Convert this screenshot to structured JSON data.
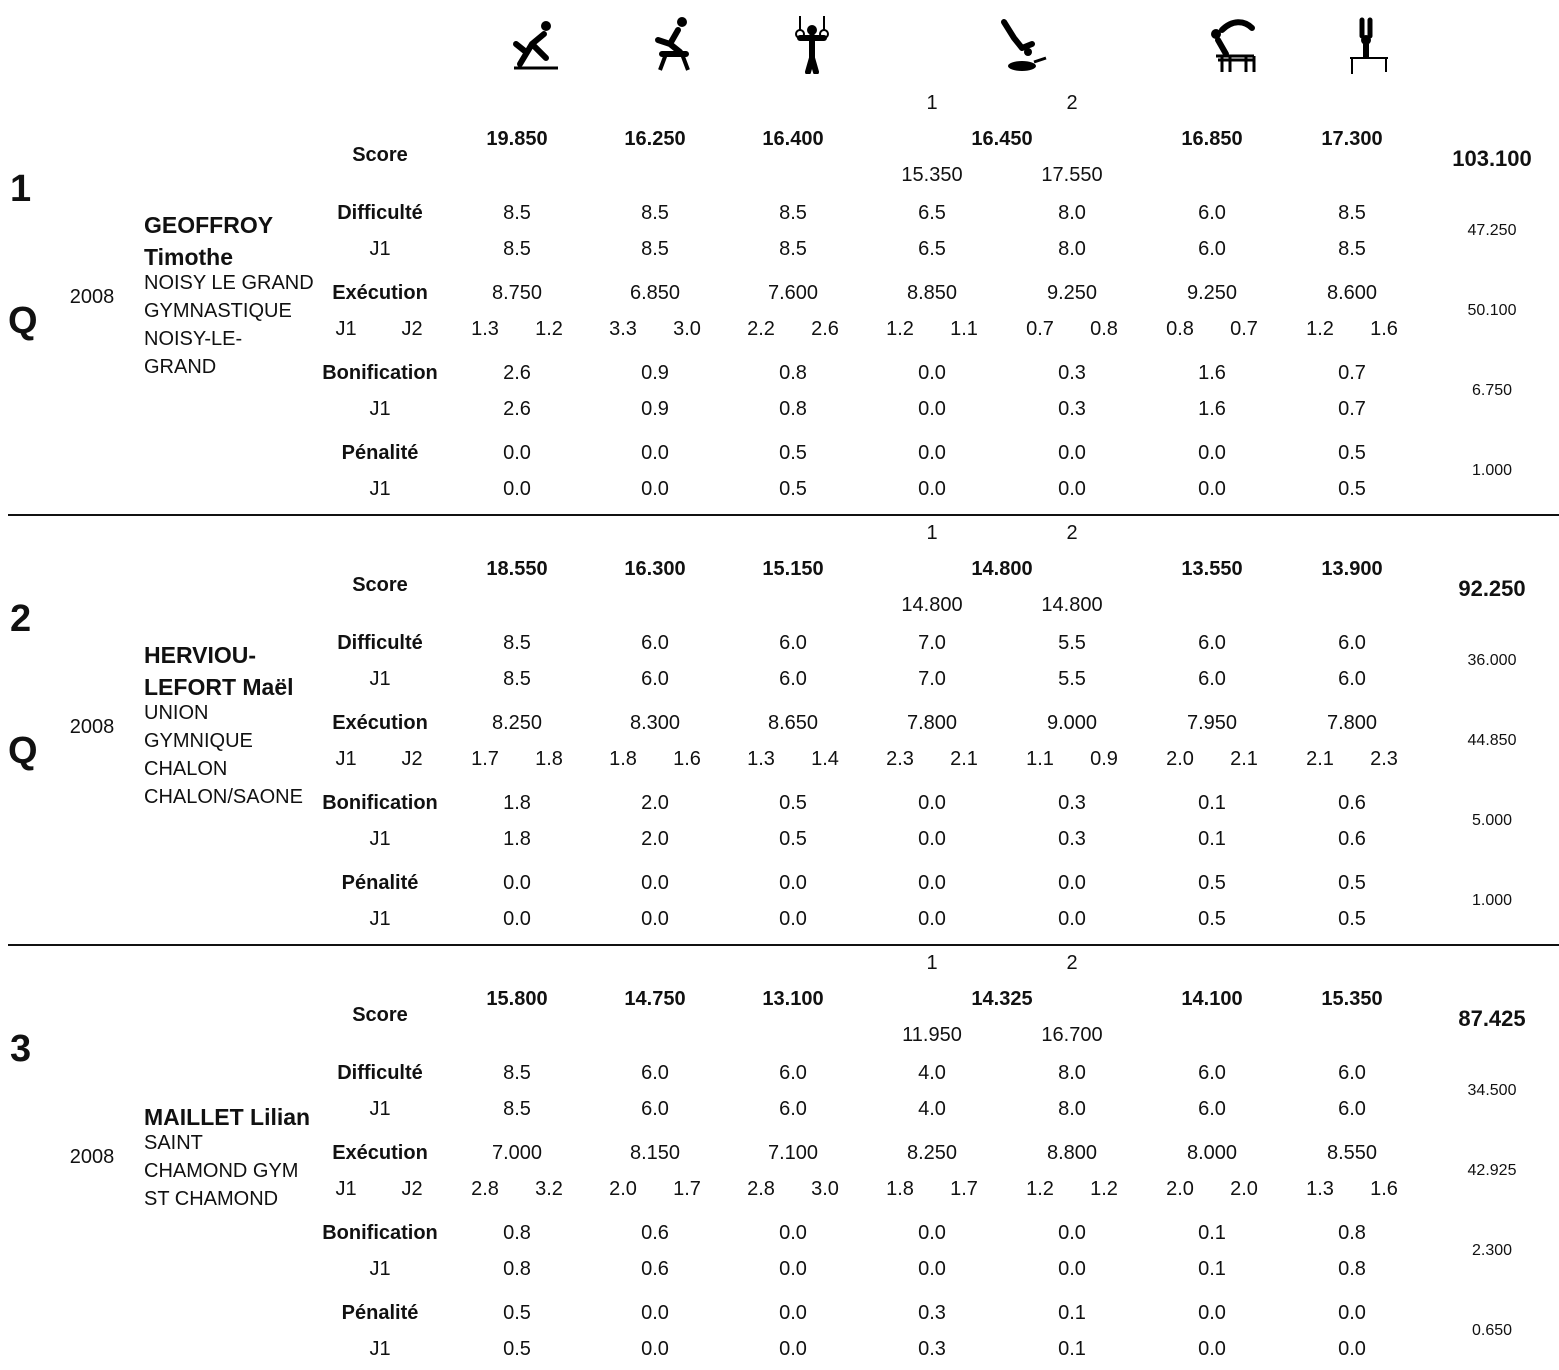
{
  "apparatus_icons": [
    "floor-icon",
    "pommel-horse-icon",
    "rings-icon",
    "vault-icon",
    "parallel-bars-icon",
    "high-bar-icon"
  ],
  "labels": {
    "score": "Score",
    "difficulty": "Difficulté",
    "execution": "Exécution",
    "bonus": "Bonification",
    "penalty": "Pénalité",
    "j1": "J1",
    "j2": "J2",
    "vault1": "1",
    "vault2": "2"
  },
  "athletes": [
    {
      "rank": "1",
      "q": "Q",
      "year": "2008",
      "name": [
        "GEOFFROY",
        "Timothe"
      ],
      "club": [
        "NOISY LE GRAND",
        "GYMNASTIQUE",
        "NOISY-LE-",
        "GRAND"
      ],
      "total": "103.100",
      "totals": {
        "difficulty": "47.250",
        "execution": "50.100",
        "bonus": "6.750",
        "penalty": "1.000"
      },
      "scores": [
        "19.850",
        "16.250",
        "16.400",
        "16.450",
        "16.850",
        "17.300"
      ],
      "vault_scores": [
        "15.350",
        "17.550"
      ],
      "difficulty": [
        "8.5",
        "8.5",
        "8.5",
        "6.5",
        "8.0",
        "6.0",
        "8.5"
      ],
      "difficulty_j1": [
        "8.5",
        "8.5",
        "8.5",
        "6.5",
        "8.0",
        "6.0",
        "8.5"
      ],
      "execution": [
        "8.750",
        "6.850",
        "7.600",
        "8.850",
        "9.250",
        "9.250",
        "8.600"
      ],
      "exec_j": [
        [
          "1.3",
          "1.2"
        ],
        [
          "3.3",
          "3.0"
        ],
        [
          "2.2",
          "2.6"
        ],
        [
          "1.2",
          "1.1"
        ],
        [
          "0.7",
          "0.8"
        ],
        [
          "0.8",
          "0.7"
        ],
        [
          "1.2",
          "1.6"
        ]
      ],
      "bonus": [
        "2.6",
        "0.9",
        "0.8",
        "0.0",
        "0.3",
        "1.6",
        "0.7"
      ],
      "bonus_j1": [
        "2.6",
        "0.9",
        "0.8",
        "0.0",
        "0.3",
        "1.6",
        "0.7"
      ],
      "penalty": [
        "0.0",
        "0.0",
        "0.5",
        "0.0",
        "0.0",
        "0.0",
        "0.5"
      ],
      "penalty_j1": [
        "0.0",
        "0.0",
        "0.5",
        "0.0",
        "0.0",
        "0.0",
        "0.5"
      ]
    },
    {
      "rank": "2",
      "q": "Q",
      "year": "2008",
      "name": [
        "HERVIOU-",
        "LEFORT Maël"
      ],
      "club": [
        "UNION",
        "GYMNIQUE",
        "CHALON",
        "CHALON/SAONE"
      ],
      "total": "92.250",
      "totals": {
        "difficulty": "36.000",
        "execution": "44.850",
        "bonus": "5.000",
        "penalty": "1.000"
      },
      "scores": [
        "18.550",
        "16.300",
        "15.150",
        "14.800",
        "13.550",
        "13.900"
      ],
      "vault_scores": [
        "14.800",
        "14.800"
      ],
      "difficulty": [
        "8.5",
        "6.0",
        "6.0",
        "7.0",
        "5.5",
        "6.0",
        "6.0"
      ],
      "difficulty_j1": [
        "8.5",
        "6.0",
        "6.0",
        "7.0",
        "5.5",
        "6.0",
        "6.0"
      ],
      "execution": [
        "8.250",
        "8.300",
        "8.650",
        "7.800",
        "9.000",
        "7.950",
        "7.800"
      ],
      "exec_j": [
        [
          "1.7",
          "1.8"
        ],
        [
          "1.8",
          "1.6"
        ],
        [
          "1.3",
          "1.4"
        ],
        [
          "2.3",
          "2.1"
        ],
        [
          "1.1",
          "0.9"
        ],
        [
          "2.0",
          "2.1"
        ],
        [
          "2.1",
          "2.3"
        ]
      ],
      "bonus": [
        "1.8",
        "2.0",
        "0.5",
        "0.0",
        "0.3",
        "0.1",
        "0.6"
      ],
      "bonus_j1": [
        "1.8",
        "2.0",
        "0.5",
        "0.0",
        "0.3",
        "0.1",
        "0.6"
      ],
      "penalty": [
        "0.0",
        "0.0",
        "0.0",
        "0.0",
        "0.0",
        "0.5",
        "0.5"
      ],
      "penalty_j1": [
        "0.0",
        "0.0",
        "0.0",
        "0.0",
        "0.0",
        "0.5",
        "0.5"
      ]
    },
    {
      "rank": "3",
      "q": "",
      "year": "2008",
      "name": [
        "MAILLET Lilian"
      ],
      "club": [
        "SAINT",
        "CHAMOND GYM",
        "ST CHAMOND"
      ],
      "total": "87.425",
      "totals": {
        "difficulty": "34.500",
        "execution": "42.925",
        "bonus": "2.300",
        "penalty": "0.650"
      },
      "scores": [
        "15.800",
        "14.750",
        "13.100",
        "14.325",
        "14.100",
        "15.350"
      ],
      "vault_scores": [
        "11.950",
        "16.700"
      ],
      "difficulty": [
        "8.5",
        "6.0",
        "6.0",
        "4.0",
        "8.0",
        "6.0",
        "6.0"
      ],
      "difficulty_j1": [
        "8.5",
        "6.0",
        "6.0",
        "4.0",
        "8.0",
        "6.0",
        "6.0"
      ],
      "execution": [
        "7.000",
        "8.150",
        "7.100",
        "8.250",
        "8.800",
        "8.000",
        "8.550"
      ],
      "exec_j": [
        [
          "2.8",
          "3.2"
        ],
        [
          "2.0",
          "1.7"
        ],
        [
          "2.8",
          "3.0"
        ],
        [
          "1.8",
          "1.7"
        ],
        [
          "1.2",
          "1.2"
        ],
        [
          "2.0",
          "2.0"
        ],
        [
          "1.3",
          "1.6"
        ]
      ],
      "bonus": [
        "0.8",
        "0.6",
        "0.0",
        "0.0",
        "0.0",
        "0.1",
        "0.8"
      ],
      "bonus_j1": [
        "0.8",
        "0.6",
        "0.0",
        "0.0",
        "0.0",
        "0.1",
        "0.8"
      ],
      "penalty": [
        "0.5",
        "0.0",
        "0.0",
        "0.3",
        "0.1",
        "0.0",
        "0.0"
      ],
      "penalty_j1": [
        "0.5",
        "0.0",
        "0.0",
        "0.3",
        "0.1",
        "0.0",
        "0.0"
      ]
    }
  ]
}
